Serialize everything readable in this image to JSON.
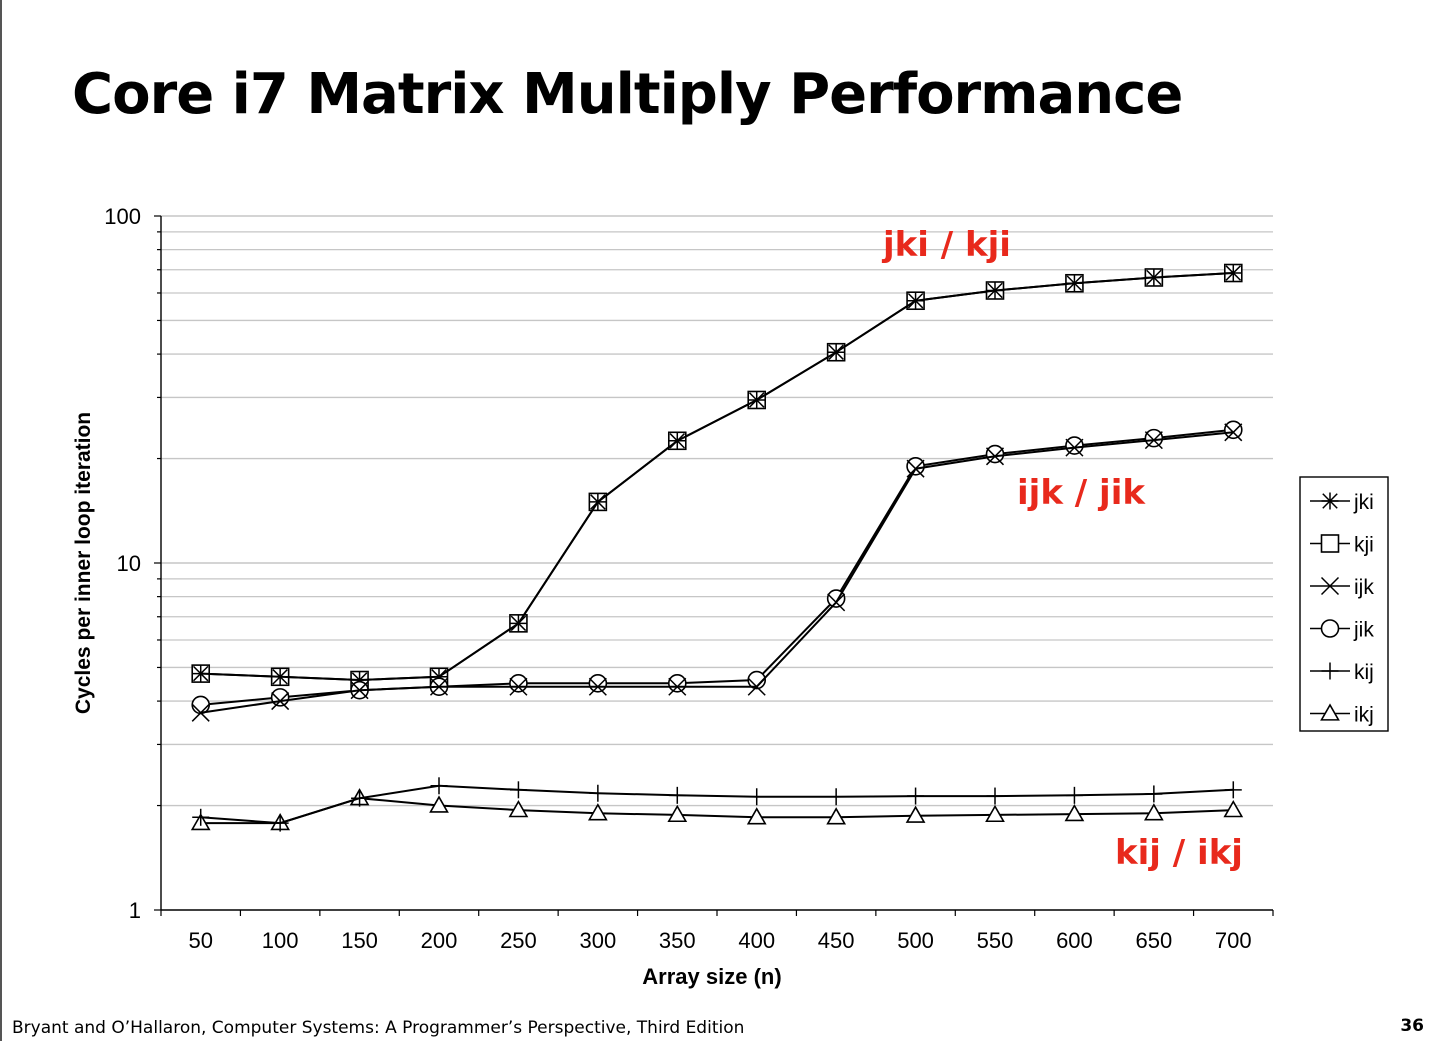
{
  "slide": {
    "title": "Core i7 Matrix Multiply Performance",
    "footer": "Bryant and O’Hallaron, Computer Systems: A Programmer’s Perspective, Third Edition",
    "page_number": "36"
  },
  "chart_data": {
    "type": "line",
    "title": "",
    "xlabel": "Array size (n)",
    "ylabel": "Cycles per inner loop iteration",
    "yscale": "log",
    "ylim": [
      1,
      100
    ],
    "y_ticks": [
      "1",
      "10",
      "100"
    ],
    "grid": true,
    "legend_position": "right",
    "categories": [
      50,
      100,
      150,
      200,
      250,
      300,
      350,
      400,
      450,
      500,
      550,
      600,
      650,
      700
    ],
    "series": [
      {
        "name": "jki",
        "marker": "asterisk",
        "values": [
          4.8,
          4.7,
          4.6,
          4.7,
          6.7,
          15,
          22.5,
          29.5,
          40.5,
          57,
          61,
          64,
          66.5,
          68.5
        ]
      },
      {
        "name": "kji",
        "marker": "square",
        "values": [
          4.8,
          4.7,
          4.6,
          4.7,
          6.7,
          15,
          22.5,
          29.5,
          40.5,
          57,
          61,
          64,
          66.5,
          68.5
        ]
      },
      {
        "name": "ijk",
        "marker": "x",
        "values": [
          3.7,
          4.0,
          4.3,
          4.4,
          4.4,
          4.4,
          4.4,
          4.4,
          7.7,
          18.7,
          20.3,
          21.5,
          22.6,
          23.8
        ]
      },
      {
        "name": "jik",
        "marker": "circle",
        "values": [
          3.9,
          4.1,
          4.3,
          4.4,
          4.5,
          4.5,
          4.5,
          4.6,
          7.9,
          19.0,
          20.6,
          21.8,
          22.9,
          24.2
        ]
      },
      {
        "name": "kij",
        "marker": "plus",
        "values": [
          1.85,
          1.78,
          2.1,
          2.28,
          2.22,
          2.17,
          2.14,
          2.12,
          2.12,
          2.13,
          2.13,
          2.14,
          2.16,
          2.22
        ]
      },
      {
        "name": "ikj",
        "marker": "triangle",
        "values": [
          1.78,
          1.78,
          2.1,
          2.0,
          1.94,
          1.9,
          1.88,
          1.85,
          1.85,
          1.87,
          1.88,
          1.89,
          1.9,
          1.94
        ]
      }
    ],
    "annotations": [
      {
        "text": "jki / kji",
        "color": "#e8291c"
      },
      {
        "text": "ijk / jik",
        "color": "#e8291c"
      },
      {
        "text": "kij / ikj",
        "color": "#e8291c"
      }
    ]
  }
}
